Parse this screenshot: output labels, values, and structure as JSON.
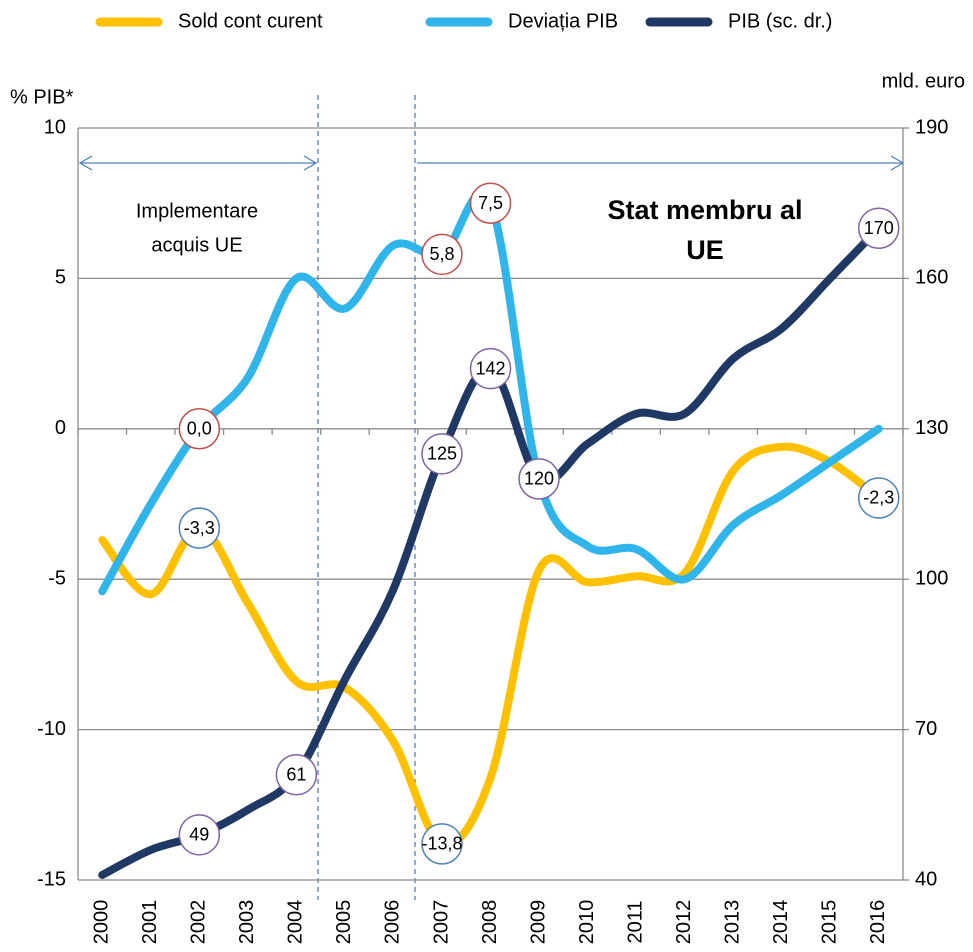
{
  "chart_data": {
    "type": "line",
    "categories": [
      "2000",
      "2001",
      "2002",
      "2003",
      "2004",
      "2005",
      "2006",
      "2007",
      "2008",
      "2009",
      "2010",
      "2011",
      "2012",
      "2013",
      "2014",
      "2015",
      "2016"
    ],
    "y_label": "% PIB*",
    "y2_label": "mld.  euro",
    "annotations": [
      "Implementare",
      "acquis  UE",
      "Stat membru al",
      "UE"
    ],
    "ylim": [
      -15,
      10
    ],
    "yticks": [
      -15,
      -10,
      -5,
      0,
      5,
      10
    ],
    "y2lim": [
      40,
      190
    ],
    "y2ticks": [
      40,
      70,
      100,
      130,
      160,
      190
    ],
    "grid": true,
    "legend": "top",
    "series": [
      {
        "name": "Sold cont curent",
        "color": "#ffc000",
        "label_color": "#4f81bd",
        "values": [
          -3.7,
          -5.5,
          -3.3,
          -5.8,
          -8.4,
          -8.6,
          -10.4,
          -13.8,
          -11.6,
          -4.7,
          -5.1,
          -4.9,
          -4.8,
          -1.4,
          -0.6,
          -1.1,
          -2.3
        ],
        "value_labels": [
          null,
          null,
          "-3,3",
          null,
          null,
          null,
          null,
          "-13,8",
          null,
          null,
          null,
          null,
          null,
          null,
          null,
          null,
          "-2,3"
        ]
      },
      {
        "name": "Deviația PIB",
        "color": "#2fb5ea",
        "label_color": "#c0504d",
        "values": [
          -5.4,
          -2.5,
          0.0,
          1.7,
          5.0,
          4.0,
          6.1,
          5.8,
          7.5,
          -1.7,
          -3.9,
          -4.0,
          -5.0,
          -3.2,
          -2.2,
          -1.1,
          0.0
        ],
        "value_labels": [
          null,
          null,
          "0,0",
          null,
          null,
          null,
          null,
          "5,8",
          "7,5",
          null,
          null,
          null,
          null,
          null,
          null,
          null,
          null
        ]
      },
      {
        "name": "PIB (sc. dr.)",
        "color": "#1f3864",
        "label_color": "#8064a2",
        "axis": "y2",
        "values": [
          41,
          46,
          49,
          54,
          61,
          80,
          98,
          125,
          142,
          120,
          127,
          133,
          133,
          144,
          150,
          160,
          170
        ],
        "value_labels": [
          null,
          null,
          "49",
          null,
          "61",
          null,
          null,
          "125",
          "142",
          "120",
          null,
          null,
          null,
          null,
          null,
          null,
          "170"
        ]
      }
    ]
  }
}
